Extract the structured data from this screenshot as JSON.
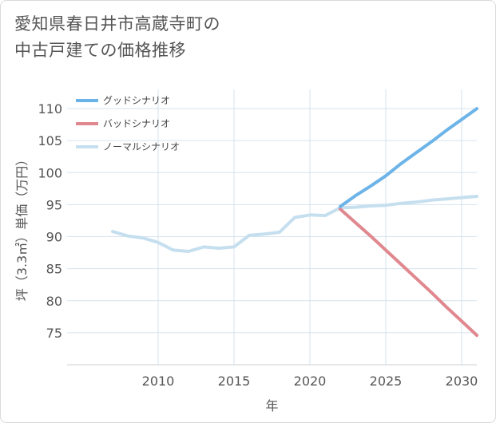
{
  "title_lines": [
    "愛知県春日井市高蔵寺町の",
    "中古戸建ての価格推移"
  ],
  "chart_data": {
    "type": "line",
    "title": "愛知県春日井市高蔵寺町の中古戸建ての価格推移",
    "xlabel": "年",
    "ylabel": "坪（3.3㎡）単価（万円）",
    "xlim": [
      2004,
      2031
    ],
    "ylim": [
      70,
      113
    ],
    "x_ticks": [
      2010,
      2015,
      2020,
      2025,
      2030
    ],
    "y_ticks": [
      75,
      80,
      85,
      90,
      95,
      100,
      105,
      110
    ],
    "grid": true,
    "legend_position": "top-left",
    "series": [
      {
        "name": "グッドシナリオ",
        "color": "#6cb4e8",
        "x": [
          2022,
          2023,
          2024,
          2025,
          2026,
          2027,
          2028,
          2029,
          2030,
          2031
        ],
        "y": [
          94.7,
          96.4,
          97.9,
          99.5,
          101.4,
          103.1,
          104.8,
          106.6,
          108.3,
          110.0
        ]
      },
      {
        "name": "バッドシナリオ",
        "color": "#e0888f",
        "x": [
          2022,
          2023,
          2024,
          2025,
          2026,
          2027,
          2028,
          2029,
          2030,
          2031
        ],
        "y": [
          94.3,
          92.2,
          90.1,
          87.9,
          85.7,
          83.5,
          81.3,
          79.0,
          76.8,
          74.6
        ]
      },
      {
        "name": "ノーマルシナリオ",
        "color": "#c5dfef",
        "x": [
          2007,
          2008,
          2009,
          2010,
          2011,
          2012,
          2013,
          2014,
          2015,
          2016,
          2017,
          2018,
          2019,
          2020,
          2021,
          2022,
          2023,
          2024,
          2025,
          2026,
          2027,
          2028,
          2029,
          2030,
          2031
        ],
        "y": [
          90.8,
          90.1,
          89.8,
          89.1,
          87.9,
          87.7,
          88.4,
          88.2,
          88.4,
          90.2,
          90.4,
          90.7,
          93.0,
          93.4,
          93.3,
          94.5,
          94.6,
          94.8,
          94.9,
          95.2,
          95.4,
          95.7,
          95.9,
          96.1,
          96.3
        ]
      }
    ]
  }
}
